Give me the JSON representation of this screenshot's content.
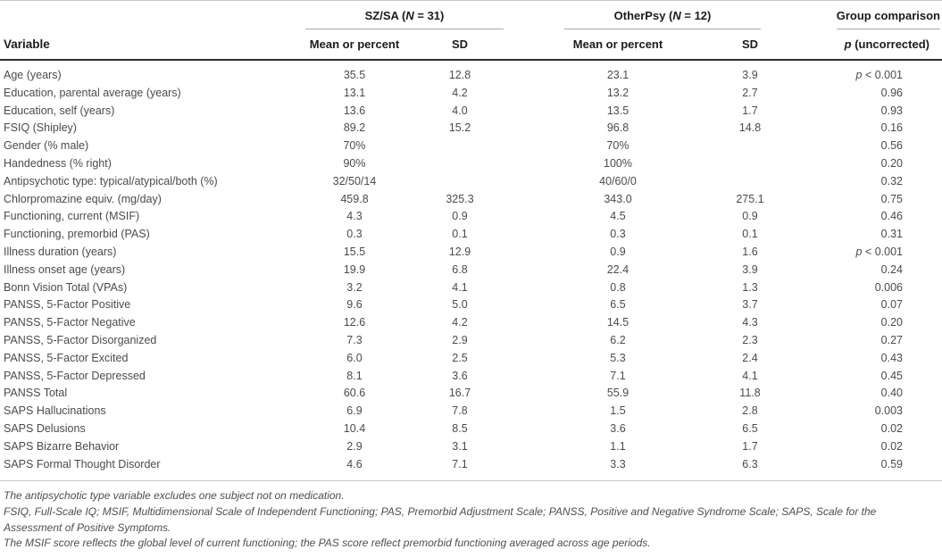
{
  "table": {
    "groups": {
      "group1": {
        "before_n": "SZ/SA (",
        "n": "N",
        "after_n": " = 31)"
      },
      "group2": {
        "before_n": "OtherPsy (",
        "n": "N",
        "after_n": " = 12)"
      },
      "group3": "Group comparison"
    },
    "columns": {
      "variable": "Variable",
      "mean1": "Mean or percent",
      "sd1": "SD",
      "mean2": "Mean or percent",
      "sd2": "SD",
      "p_italic": "p",
      "p_rest": " (uncorrected)"
    },
    "rows": [
      {
        "variable": "Age (years)",
        "mean1": "35.5",
        "sd1": "12.8",
        "mean2": "23.1",
        "sd2": "3.9",
        "p": "p < 0.001"
      },
      {
        "variable": "Education, parental average (years)",
        "mean1": "13.1",
        "sd1": "4.2",
        "mean2": "13.2",
        "sd2": "2.7",
        "p": "0.96"
      },
      {
        "variable": "Education, self (years)",
        "mean1": "13.6",
        "sd1": "4.0",
        "mean2": "13.5",
        "sd2": "1.7",
        "p": "0.93"
      },
      {
        "variable": "FSIQ (Shipley)",
        "mean1": "89.2",
        "sd1": "15.2",
        "mean2": "96.8",
        "sd2": "14.8",
        "p": "0.16"
      },
      {
        "variable": "Gender (% male)",
        "mean1": "70%",
        "sd1": "",
        "mean2": "70%",
        "sd2": "",
        "p": "0.56"
      },
      {
        "variable": "Handedness (% right)",
        "mean1": "90%",
        "sd1": "",
        "mean2": "100%",
        "sd2": "",
        "p": "0.20"
      },
      {
        "variable": "Antipsychotic type: typical/atypical/both (%)",
        "mean1": "32/50/14",
        "sd1": "",
        "mean2": "40/60/0",
        "sd2": "",
        "p": "0.32"
      },
      {
        "variable": "Chlorpromazine equiv. (mg/day)",
        "mean1": "459.8",
        "sd1": "325.3",
        "mean2": "343.0",
        "sd2": "275.1",
        "p": "0.75"
      },
      {
        "variable": "Functioning, current (MSIF)",
        "mean1": "4.3",
        "sd1": "0.9",
        "mean2": "4.5",
        "sd2": "0.9",
        "p": "0.46"
      },
      {
        "variable": "Functioning, premorbid (PAS)",
        "mean1": "0.3",
        "sd1": "0.1",
        "mean2": "0.3",
        "sd2": "0.1",
        "p": "0.31"
      },
      {
        "variable": "Illness duration (years)",
        "mean1": "15.5",
        "sd1": "12.9",
        "mean2": "0.9",
        "sd2": "1.6",
        "p": "p < 0.001"
      },
      {
        "variable": "Illness onset age (years)",
        "mean1": "19.9",
        "sd1": "6.8",
        "mean2": "22.4",
        "sd2": "3.9",
        "p": "0.24"
      },
      {
        "variable": "Bonn Vision Total (VPAs)",
        "mean1": "3.2",
        "sd1": "4.1",
        "mean2": "0.8",
        "sd2": "1.3",
        "p": "0.006"
      },
      {
        "variable": "PANSS, 5-Factor Positive",
        "mean1": "9.6",
        "sd1": "5.0",
        "mean2": "6.5",
        "sd2": "3.7",
        "p": "0.07"
      },
      {
        "variable": "PANSS, 5-Factor Negative",
        "mean1": "12.6",
        "sd1": "4.2",
        "mean2": "14.5",
        "sd2": "4.3",
        "p": "0.20"
      },
      {
        "variable": "PANSS, 5-Factor Disorganized",
        "mean1": "7.3",
        "sd1": "2.9",
        "mean2": "6.2",
        "sd2": "2.3",
        "p": "0.27"
      },
      {
        "variable": "PANSS, 5-Factor Excited",
        "mean1": "6.0",
        "sd1": "2.5",
        "mean2": "5.3",
        "sd2": "2.4",
        "p": "0.43"
      },
      {
        "variable": "PANSS, 5-Factor Depressed",
        "mean1": "8.1",
        "sd1": "3.6",
        "mean2": "7.1",
        "sd2": "4.1",
        "p": "0.45"
      },
      {
        "variable": "PANSS Total",
        "mean1": "60.6",
        "sd1": "16.7",
        "mean2": "55.9",
        "sd2": "11.8",
        "p": "0.40"
      },
      {
        "variable": "SAPS Hallucinations",
        "mean1": "6.9",
        "sd1": "7.8",
        "mean2": "1.5",
        "sd2": "2.8",
        "p": "0.003"
      },
      {
        "variable": "SAPS Delusions",
        "mean1": "10.4",
        "sd1": "8.5",
        "mean2": "3.6",
        "sd2": "6.5",
        "p": "0.02"
      },
      {
        "variable": "SAPS Bizarre Behavior",
        "mean1": "2.9",
        "sd1": "3.1",
        "mean2": "1.1",
        "sd2": "1.7",
        "p": "0.02"
      },
      {
        "variable": "SAPS Formal Thought Disorder",
        "mean1": "4.6",
        "sd1": "7.1",
        "mean2": "3.3",
        "sd2": "6.3",
        "p": "0.59"
      }
    ]
  },
  "footnotes": [
    "The antipsychotic type variable excludes one subject not on medication.",
    "FSIQ, Full-Scale IQ; MSIF, Multidimensional Scale of Independent Functioning; PAS, Premorbid Adjustment Scale; PANSS, Positive and Negative Syndrome Scale; SAPS, Scale for the Assessment of Positive Symptoms.",
    "The MSIF score reflects the global level of current functioning; the PAS score reflect premorbid functioning averaged across age periods."
  ],
  "colors": {
    "header_text": "#1b1b1d",
    "body_text": "#4b4b4d",
    "light_rule": "#c6c6c8",
    "group_rule": "#a8a8aa",
    "dark_rule": "#2c2c2e"
  }
}
